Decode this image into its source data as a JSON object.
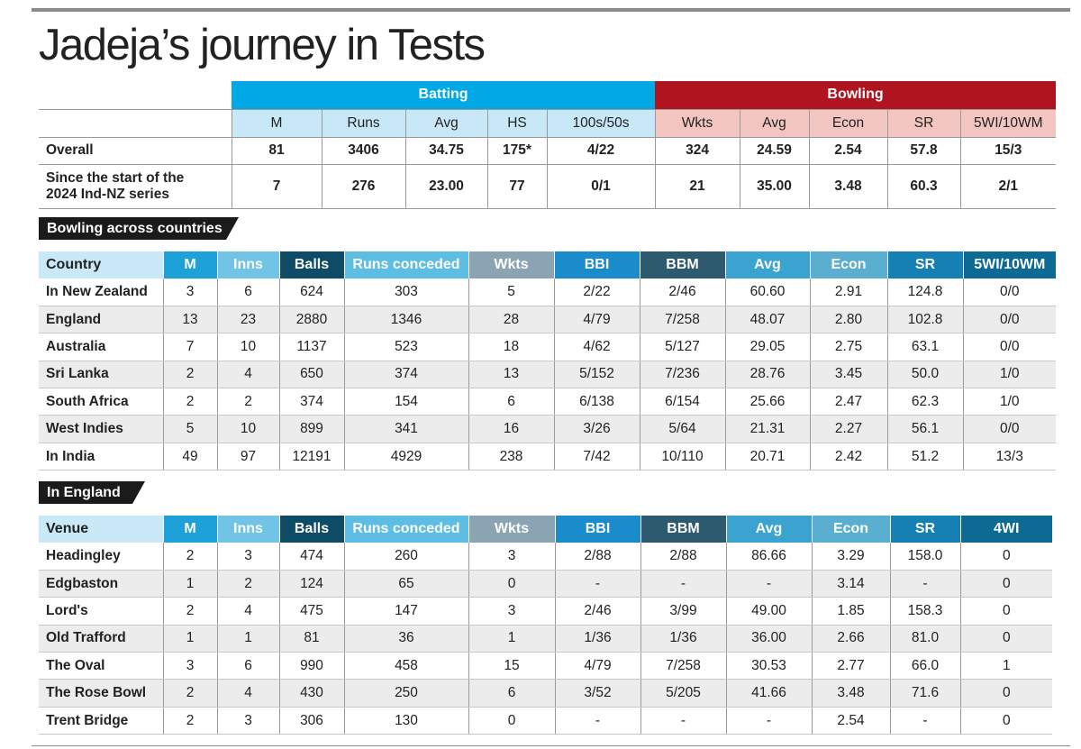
{
  "title": "Jadeja’s journey in Tests",
  "summary": {
    "group_headers": [
      "Batting",
      "Bowling"
    ],
    "columns": [
      "M",
      "Runs",
      "Avg",
      "HS",
      "100s/50s",
      "Wkts",
      "Avg",
      "Econ",
      "SR",
      "5WI/10WM"
    ],
    "rows": [
      {
        "label": "Overall",
        "values": [
          "81",
          "3406",
          "34.75",
          "175*",
          "4/22",
          "324",
          "24.59",
          "2.54",
          "57.8",
          "15/3"
        ]
      },
      {
        "label": "Since the start of the 2024 Ind-NZ series",
        "values": [
          "7",
          "276",
          "23.00",
          "77",
          "0/1",
          "21",
          "35.00",
          "3.48",
          "60.3",
          "2/1"
        ]
      }
    ]
  },
  "countries": {
    "heading": "Bowling across countries",
    "columns": [
      "Country",
      "M",
      "Inns",
      "Balls",
      "Runs conceded",
      "Wkts",
      "BBI",
      "BBM",
      "Avg",
      "Econ",
      "SR",
      "5WI/10WM"
    ],
    "rows": [
      [
        "In New Zealand",
        "3",
        "6",
        "624",
        "303",
        "5",
        "2/22",
        "2/46",
        "60.60",
        "2.91",
        "124.8",
        "0/0"
      ],
      [
        "England",
        "13",
        "23",
        "2880",
        "1346",
        "28",
        "4/79",
        "7/258",
        "48.07",
        "2.80",
        "102.8",
        "0/0"
      ],
      [
        "Australia",
        "7",
        "10",
        "1137",
        "523",
        "18",
        "4/62",
        "5/127",
        "29.05",
        "2.75",
        "63.1",
        "0/0"
      ],
      [
        "Sri Lanka",
        "2",
        "4",
        "650",
        "374",
        "13",
        "5/152",
        "7/236",
        "28.76",
        "3.45",
        "50.0",
        "1/0"
      ],
      [
        "South Africa",
        "2",
        "2",
        "374",
        "154",
        "6",
        "6/138",
        "6/154",
        "25.66",
        "2.47",
        "62.3",
        "1/0"
      ],
      [
        "West Indies",
        "5",
        "10",
        "899",
        "341",
        "16",
        "3/26",
        "5/64",
        "21.31",
        "2.27",
        "56.1",
        "0/0"
      ],
      [
        "In India",
        "49",
        "97",
        "12191",
        "4929",
        "238",
        "7/42",
        "10/110",
        "20.71",
        "2.42",
        "51.2",
        "13/3"
      ]
    ]
  },
  "england": {
    "heading": "In England",
    "columns": [
      "Venue",
      "M",
      "Inns",
      "Balls",
      "Runs conceded",
      "Wkts",
      "BBI",
      "BBM",
      "Avg",
      "Econ",
      "SR",
      "4WI"
    ],
    "rows": [
      [
        "Headingley",
        "2",
        "3",
        "474",
        "260",
        "3",
        "2/88",
        "2/88",
        "86.66",
        "3.29",
        "158.0",
        "0"
      ],
      [
        "Edgbaston",
        "1",
        "2",
        "124",
        "65",
        "0",
        "-",
        "-",
        "-",
        "3.14",
        "-",
        "0"
      ],
      [
        "Lord's",
        "2",
        "4",
        "475",
        "147",
        "3",
        "2/46",
        "3/99",
        "49.00",
        "1.85",
        "158.3",
        "0"
      ],
      [
        "Old Trafford",
        "1",
        "1",
        "81",
        "36",
        "1",
        "1/36",
        "1/36",
        "36.00",
        "2.66",
        "81.0",
        "0"
      ],
      [
        "The Oval",
        "3",
        "6",
        "990",
        "458",
        "15",
        "4/79",
        "7/258",
        "30.53",
        "2.77",
        "66.0",
        "1"
      ],
      [
        "The Rose Bowl",
        "2",
        "4",
        "430",
        "250",
        "6",
        "3/52",
        "5/205",
        "41.66",
        "3.48",
        "71.6",
        "0"
      ],
      [
        "Trent Bridge",
        "2",
        "3",
        "306",
        "130",
        "0",
        "-",
        "-",
        "-",
        "2.54",
        "-",
        "0"
      ]
    ]
  }
}
